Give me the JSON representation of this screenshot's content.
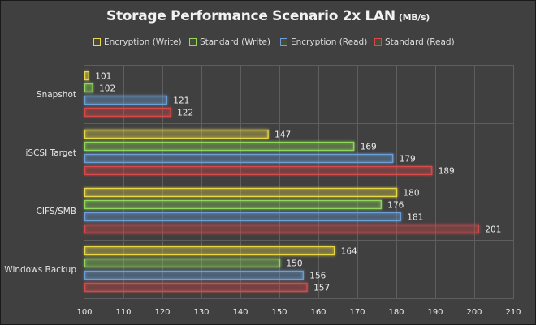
{
  "chart_data": {
    "type": "bar",
    "orientation": "horizontal",
    "title": "Storage  Performance Scenario 2x LAN",
    "title_unit": "(MB/s)",
    "xlabel": "",
    "ylabel": "",
    "xlim": [
      100,
      210
    ],
    "x_ticks": [
      100,
      110,
      120,
      130,
      140,
      150,
      160,
      170,
      180,
      190,
      200,
      210
    ],
    "grid": true,
    "legend_position": "top",
    "categories": [
      "Snapshot",
      "iSCSI Target",
      "CIFS/SMB",
      "Windows Backup"
    ],
    "series": [
      {
        "name": "Encryption (Write)",
        "color": "#e8d84a",
        "values": [
          101,
          147,
          180,
          164
        ]
      },
      {
        "name": "Standard (Write)",
        "color": "#8fd85a",
        "values": [
          102,
          169,
          176,
          150
        ]
      },
      {
        "name": "Encryption (Read)",
        "color": "#6a9fd8",
        "values": [
          121,
          179,
          181,
          156
        ]
      },
      {
        "name": "Standard (Read)",
        "color": "#d84a4a",
        "values": [
          122,
          189,
          201,
          157
        ]
      }
    ]
  }
}
